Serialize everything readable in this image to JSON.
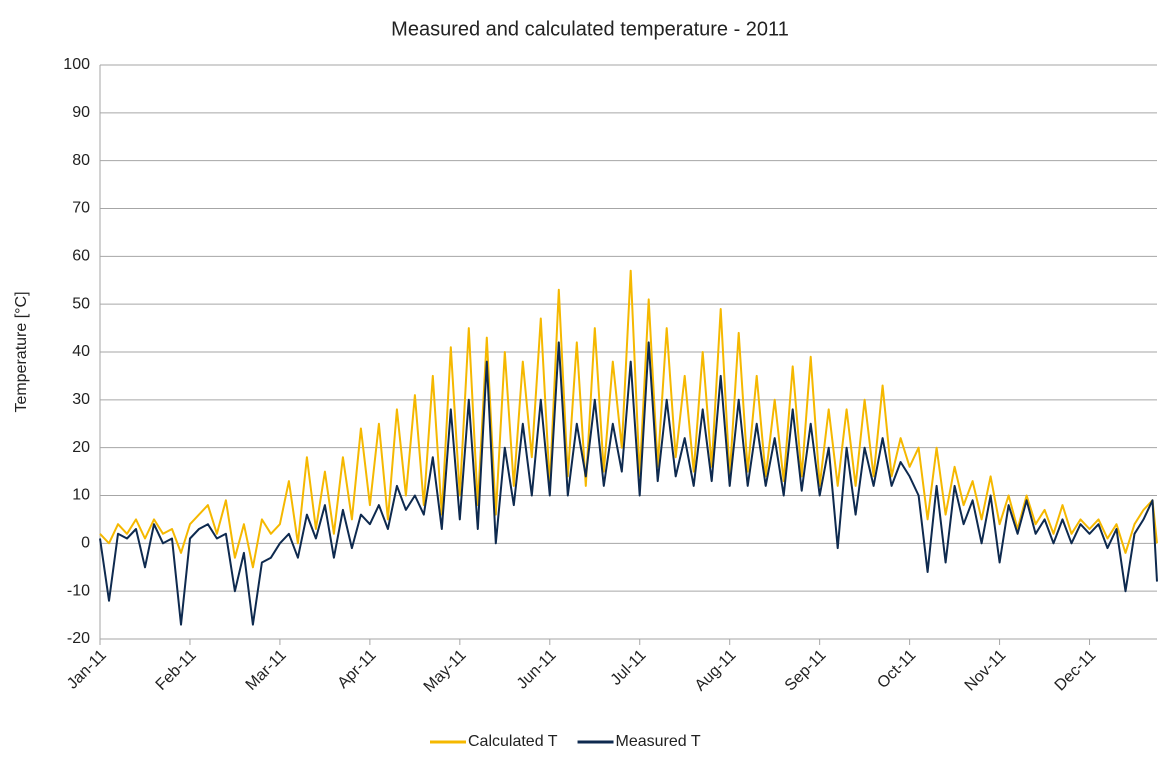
{
  "chart_data": {
    "type": "line",
    "title": "Measured and calculated temperature - 2011",
    "y_label": "Temperature [°C]",
    "xlim": [
      0,
      11.75
    ],
    "xticks": [
      {
        "value": 0,
        "label": "Jan-11"
      },
      {
        "value": 1,
        "label": "Feb-11"
      },
      {
        "value": 2,
        "label": "Mar-11"
      },
      {
        "value": 3,
        "label": "Apr-11"
      },
      {
        "value": 4,
        "label": "May-11"
      },
      {
        "value": 5,
        "label": "Jun-11"
      },
      {
        "value": 6,
        "label": "Jul-11"
      },
      {
        "value": 7,
        "label": "Aug-11"
      },
      {
        "value": 8,
        "label": "Sep-11"
      },
      {
        "value": 9,
        "label": "Oct-11"
      },
      {
        "value": 10,
        "label": "Nov-11"
      },
      {
        "value": 11,
        "label": "Dec-11"
      }
    ],
    "ylim": [
      -20,
      100
    ],
    "yticks": [
      -20,
      -10,
      0,
      10,
      20,
      30,
      40,
      50,
      60,
      70,
      80,
      90,
      100
    ],
    "grid": true,
    "legend": "bottom",
    "x": [
      0,
      0.1,
      0.2,
      0.3,
      0.4,
      0.5,
      0.6,
      0.7,
      0.8,
      0.9,
      1,
      1.1,
      1.2,
      1.3,
      1.4,
      1.5,
      1.6,
      1.7,
      1.8,
      1.9,
      2,
      2.1,
      2.2,
      2.3,
      2.4,
      2.5,
      2.6,
      2.7,
      2.8,
      2.9,
      3,
      3.1,
      3.2,
      3.3,
      3.4,
      3.5,
      3.6,
      3.7,
      3.8,
      3.9,
      4,
      4.1,
      4.2,
      4.3,
      4.4,
      4.5,
      4.6,
      4.7,
      4.8,
      4.9,
      5,
      5.1,
      5.2,
      5.3,
      5.4,
      5.5,
      5.6,
      5.7,
      5.8,
      5.9,
      6,
      6.1,
      6.2,
      6.3,
      6.4,
      6.5,
      6.6,
      6.7,
      6.8,
      6.9,
      7,
      7.1,
      7.2,
      7.3,
      7.4,
      7.5,
      7.6,
      7.7,
      7.8,
      7.9,
      8,
      8.1,
      8.2,
      8.3,
      8.4,
      8.5,
      8.6,
      8.7,
      8.8,
      8.9,
      9,
      9.1,
      9.2,
      9.3,
      9.4,
      9.5,
      9.6,
      9.7,
      9.8,
      9.9,
      10,
      10.1,
      10.2,
      10.3,
      10.4,
      10.5,
      10.6,
      10.7,
      10.8,
      10.9,
      11,
      11.1,
      11.2,
      11.3,
      11.4,
      11.5,
      11.6,
      11.7,
      11.75
    ],
    "series": [
      {
        "name": "Calculated T",
        "color": "#f5b800",
        "values": [
          2,
          0,
          4,
          2,
          5,
          1,
          5,
          2,
          3,
          -2,
          4,
          6,
          8,
          2,
          9,
          -3,
          4,
          -5,
          5,
          2,
          4,
          13,
          0,
          18,
          3,
          15,
          2,
          18,
          5,
          24,
          8,
          25,
          5,
          28,
          10,
          31,
          8,
          35,
          6,
          41,
          10,
          45,
          8,
          43,
          6,
          40,
          12,
          38,
          18,
          47,
          12,
          53,
          14,
          42,
          12,
          45,
          15,
          38,
          20,
          57,
          14,
          51,
          16,
          45,
          18,
          35,
          15,
          40,
          16,
          49,
          14,
          44,
          15,
          35,
          14,
          30,
          13,
          37,
          14,
          39,
          12,
          28,
          12,
          28,
          12,
          30,
          14,
          33,
          14,
          22,
          16,
          20,
          5,
          20,
          6,
          16,
          8,
          13,
          5,
          14,
          4,
          10,
          3,
          10,
          4,
          7,
          2,
          8,
          2,
          5,
          3,
          5,
          1,
          4,
          -2,
          4,
          7,
          9,
          0
        ]
      },
      {
        "name": "Measured T",
        "color": "#0e2a4f",
        "values": [
          1,
          -12,
          2,
          1,
          3,
          -5,
          4,
          0,
          1,
          -17,
          1,
          3,
          4,
          1,
          2,
          -10,
          -2,
          -17,
          -4,
          -3,
          0,
          2,
          -3,
          6,
          1,
          8,
          -3,
          7,
          -1,
          6,
          4,
          8,
          3,
          12,
          7,
          10,
          6,
          18,
          3,
          28,
          5,
          30,
          3,
          38,
          0,
          20,
          8,
          25,
          10,
          30,
          10,
          42,
          10,
          25,
          14,
          30,
          12,
          25,
          15,
          38,
          10,
          42,
          13,
          30,
          14,
          22,
          12,
          28,
          13,
          35,
          12,
          30,
          12,
          25,
          12,
          22,
          10,
          28,
          11,
          25,
          10,
          20,
          -1,
          20,
          6,
          20,
          12,
          22,
          12,
          17,
          14,
          10,
          -6,
          12,
          -4,
          12,
          4,
          9,
          0,
          10,
          -4,
          8,
          2,
          9,
          2,
          5,
          0,
          5,
          0,
          4,
          2,
          4,
          -1,
          3,
          -10,
          2,
          5,
          9,
          -8
        ]
      }
    ]
  }
}
